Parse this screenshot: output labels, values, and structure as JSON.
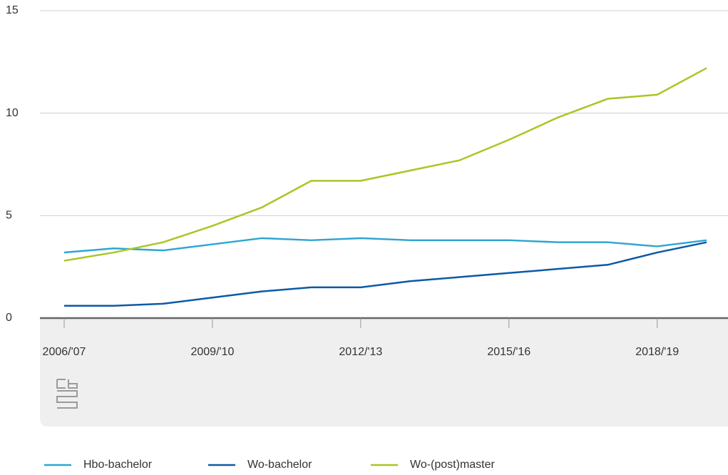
{
  "chart_data": {
    "type": "line",
    "categories": [
      "2006/'07",
      null,
      null,
      "2009/'10",
      null,
      null,
      "2012/'13",
      null,
      null,
      "2015/'16",
      null,
      null,
      "2018/'19",
      null
    ],
    "series": [
      {
        "name": "Hbo-bachelor",
        "color": "#2ea6d2",
        "values": [
          3.2,
          3.4,
          3.3,
          3.6,
          3.9,
          3.8,
          3.9,
          3.8,
          3.8,
          3.8,
          3.7,
          3.7,
          3.5,
          3.8
        ]
      },
      {
        "name": "Wo-bachelor",
        "color": "#0c5aa6",
        "values": [
          0.6,
          0.6,
          0.7,
          1.0,
          1.3,
          1.5,
          1.5,
          1.8,
          2.0,
          2.2,
          2.4,
          2.6,
          3.2,
          3.7
        ]
      },
      {
        "name": "Wo-(post)master",
        "color": "#aac623",
        "values": [
          2.8,
          3.2,
          3.7,
          4.5,
          5.4,
          6.7,
          6.7,
          7.2,
          7.7,
          8.7,
          9.8,
          10.7,
          10.9,
          12.2
        ]
      }
    ],
    "ylim": [
      0,
      15
    ],
    "yticks": [
      0,
      5,
      10,
      15
    ],
    "grid": true
  }
}
